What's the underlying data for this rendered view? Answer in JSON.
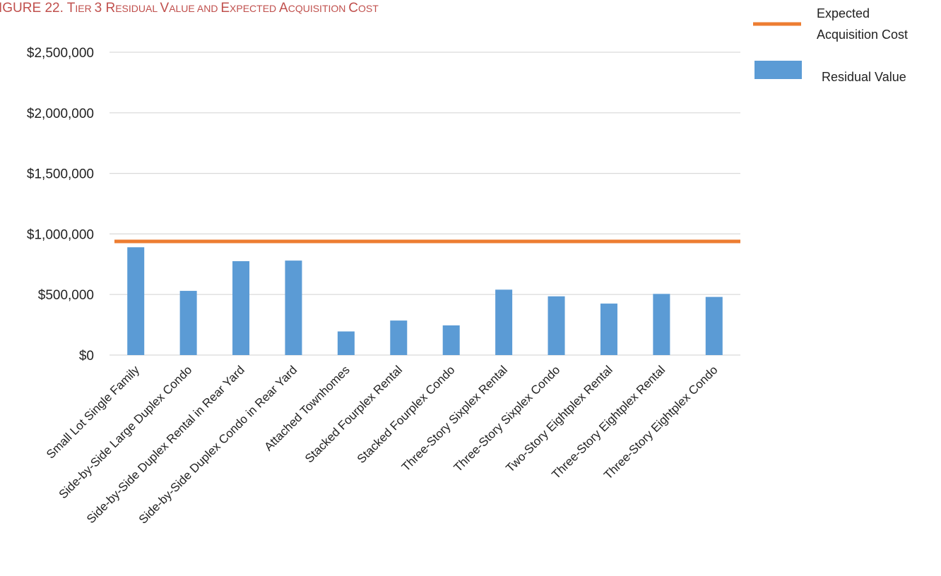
{
  "chart_data": {
    "type": "bar",
    "title": "IGURE 22. TIER 3 RESIDUAL VALUE AND EXPECTED ACQUISITION COST",
    "title_parts": [
      {
        "text": "IGURE 22. T",
        "big": true
      },
      {
        "text": "IER ",
        "big": false
      },
      {
        "text": "3 R",
        "big": true
      },
      {
        "text": "ESIDUAL ",
        "big": false
      },
      {
        "text": "V",
        "big": true
      },
      {
        "text": "ALUE AND ",
        "big": false
      },
      {
        "text": "E",
        "big": true
      },
      {
        "text": "XPECTED ",
        "big": false
      },
      {
        "text": "A",
        "big": true
      },
      {
        "text": "CQUISITION ",
        "big": false
      },
      {
        "text": "C",
        "big": true
      },
      {
        "text": "OST",
        "big": false
      }
    ],
    "xlabel": "",
    "ylabel": "",
    "ylim": [
      0,
      2500000
    ],
    "yticks": [
      {
        "value": 0,
        "label": "$0"
      },
      {
        "value": 500000,
        "label": "$500,000"
      },
      {
        "value": 1000000,
        "label": "$1,000,000"
      },
      {
        "value": 1500000,
        "label": "$1,500,000"
      },
      {
        "value": 2000000,
        "label": "$2,000,000"
      },
      {
        "value": 2500000,
        "label": "$2,500,000"
      }
    ],
    "grid": true,
    "legend_position": "top-right",
    "categories": [
      "Small Lot Single Family",
      "Side-by-Side Large Duplex Condo",
      "Side-by-Side Duplex Rental in Rear Yard",
      "Side-by-Side Duplex Condo in Rear Yard",
      "Attached Townhomes",
      "Stacked Fourplex Rental",
      "Stacked Fourplex Condo",
      "Three-Story Sixplex Rental",
      "Three-Story Sixplex Condo",
      "Two-Story Eightplex Rental",
      "Three-Story Eightplex Rental",
      "Three-Story Eightplex Condo"
    ],
    "series": [
      {
        "name": "Residual Value",
        "type": "bar",
        "color": "#5b9bd5",
        "values": [
          890000,
          530000,
          775000,
          780000,
          195000,
          285000,
          245000,
          540000,
          485000,
          425000,
          505000,
          480000
        ]
      },
      {
        "name": "Expected Acquisition Cost",
        "type": "line",
        "color": "#ed7d31",
        "value": 938000
      }
    ],
    "legend": [
      {
        "lines": [
          "Expected",
          "Acquisition Cost"
        ],
        "kind": "line",
        "color": "#ed7d31"
      },
      {
        "lines": [
          "Residual Value"
        ],
        "kind": "bar",
        "color": "#5b9bd5"
      }
    ]
  }
}
